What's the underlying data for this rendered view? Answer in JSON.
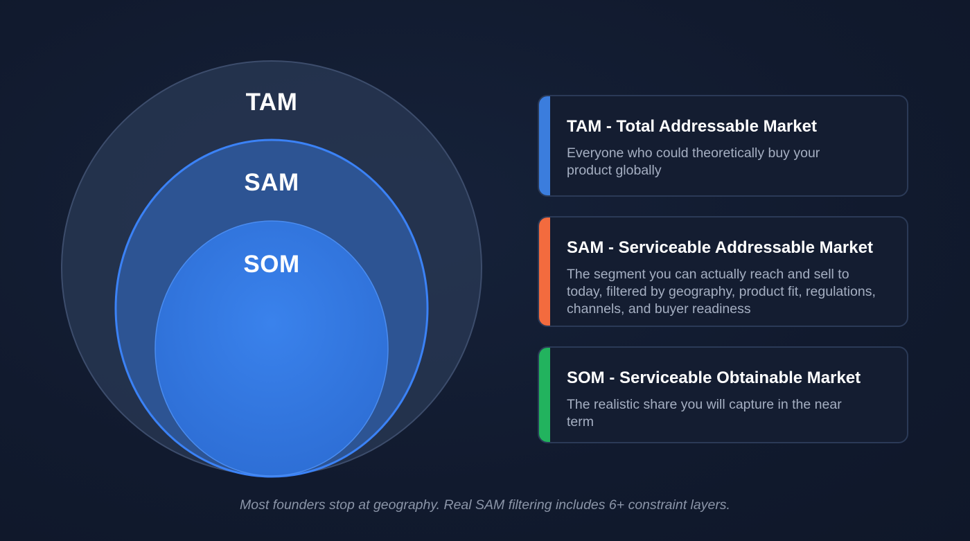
{
  "diagram": {
    "rings": {
      "tam_label": "TAM",
      "sam_label": "SAM",
      "som_label": "SOM"
    },
    "colors": {
      "tam_fill": "#2a3956",
      "tam_stroke": "#3d4d6c",
      "sam_fill": "#2f5aa0",
      "sam_stroke": "#3b82f6",
      "som_fill": "#3179e0",
      "som_stroke": "#4a8cf0"
    }
  },
  "cards": [
    {
      "title": "TAM - Total Addressable Market",
      "description": "Everyone who could theoretically buy your product globally",
      "accent": "#3b7ddd"
    },
    {
      "title": "SAM - Serviceable Addressable Market",
      "description": "The segment you can actually reach and sell to today, filtered by geography, product fit, regulations, channels, and buyer readiness",
      "accent": "#f36b3e"
    },
    {
      "title": "SOM - Serviceable Obtainable Market",
      "description": "The realistic share you will capture in the near term",
      "accent": "#22b35e"
    }
  ],
  "footer": {
    "note": "Most founders stop at geography. Real SAM filtering includes 6+ constraint layers."
  }
}
